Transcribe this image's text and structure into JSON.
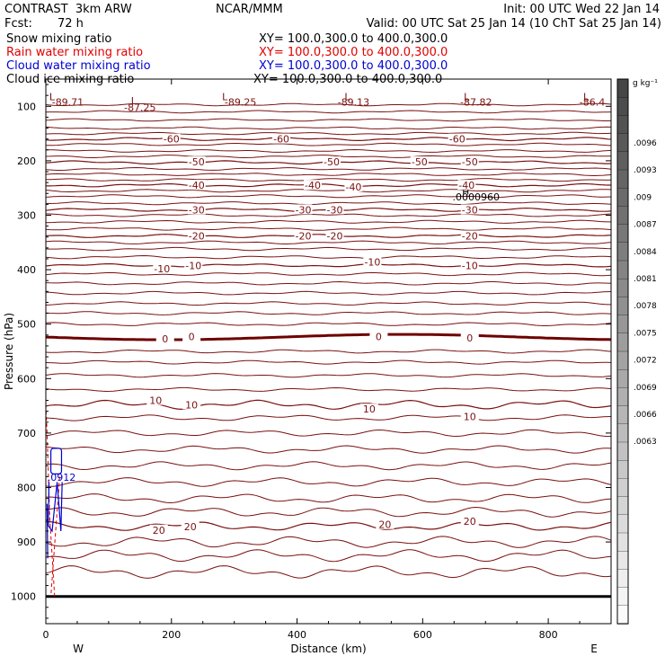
{
  "header": {
    "model": "CONTRAST  3km ARW",
    "center": "NCAR/MMM",
    "init": "Init: 00 UTC Wed 22 Jan 14",
    "fcst_label": "Fcst:",
    "fcst_value": "72 h",
    "valid": "Valid: 00 UTC Sat 25 Jan 14 (10 ChT Sat 25 Jan 14)"
  },
  "fields": [
    {
      "name": "Snow mixing ratio",
      "xy": "XY= 100.0,300.0 to 400.0,300.0",
      "color": "#000000"
    },
    {
      "name": "Rain water mixing ratio",
      "xy": "XY= 100.0,300.0 to 400.0,300.0",
      "color": "#e00000"
    },
    {
      "name": "Cloud water mixing ratio",
      "xy": "XY= 100.0,300.0 to 400.0,300.0",
      "color": "#0000d0"
    },
    {
      "name": "Cloud ice mixing ratio",
      "xy": "XY= 100.0,300.0 to 400.0,300.0",
      "color": "#000000"
    }
  ],
  "chart_data": {
    "type": "contour",
    "xlabel": "Distance (km)",
    "ylabel": "Pressure (hPa)",
    "xlim": [
      0,
      900
    ],
    "ylim": [
      50,
      1050
    ],
    "x_ticks": [
      0,
      200,
      400,
      600,
      800
    ],
    "y_ticks": [
      100,
      200,
      300,
      400,
      500,
      600,
      700,
      800,
      900,
      1000
    ],
    "x_end_labels": {
      "left": "W",
      "right": "E"
    },
    "temperature_contours": [
      {
        "level": -60,
        "base_p": 160
      },
      {
        "level": -50,
        "base_p": 203
      },
      {
        "level": -40,
        "base_p": 245
      },
      {
        "level": -30,
        "base_p": 290
      },
      {
        "level": -20,
        "base_p": 338
      },
      {
        "level": -10,
        "base_p": 392
      },
      {
        "level": 0,
        "base_p": 527,
        "bold": true
      },
      {
        "level": 10,
        "base_p": 648
      },
      {
        "level": 20,
        "base_p": 871
      }
    ],
    "contour_labels": [
      {
        "text": "-60",
        "x": 200,
        "p": 160
      },
      {
        "text": "-60",
        "x": 375,
        "p": 160
      },
      {
        "text": "-60",
        "x": 655,
        "p": 160
      },
      {
        "text": "-50",
        "x": 240,
        "p": 202
      },
      {
        "text": "-50",
        "x": 455,
        "p": 202
      },
      {
        "text": "-50",
        "x": 595,
        "p": 202
      },
      {
        "text": "-50",
        "x": 675,
        "p": 202
      },
      {
        "text": "-40",
        "x": 240,
        "p": 245
      },
      {
        "text": "-40",
        "x": 425,
        "p": 245
      },
      {
        "text": "-40",
        "x": 490,
        "p": 248
      },
      {
        "text": "-40",
        "x": 670,
        "p": 245
      },
      {
        "text": "-30",
        "x": 240,
        "p": 290
      },
      {
        "text": "-30",
        "x": 410,
        "p": 290
      },
      {
        "text": "-30",
        "x": 460,
        "p": 290
      },
      {
        "text": "-30",
        "x": 675,
        "p": 290
      },
      {
        "text": "-20",
        "x": 240,
        "p": 338
      },
      {
        "text": "-20",
        "x": 410,
        "p": 338
      },
      {
        "text": "-20",
        "x": 460,
        "p": 338
      },
      {
        "text": "-20",
        "x": 675,
        "p": 338
      },
      {
        "text": "-10",
        "x": 185,
        "p": 398
      },
      {
        "text": "-10",
        "x": 235,
        "p": 392
      },
      {
        "text": "-10",
        "x": 520,
        "p": 386
      },
      {
        "text": "-10",
        "x": 675,
        "p": 392
      },
      {
        "text": "0",
        "x": 190,
        "p": 527
      },
      {
        "text": "0",
        "x": 232,
        "p": 523
      },
      {
        "text": "0",
        "x": 530,
        "p": 523
      },
      {
        "text": "0",
        "x": 675,
        "p": 525
      },
      {
        "text": "10",
        "x": 175,
        "p": 640
      },
      {
        "text": "10",
        "x": 232,
        "p": 648
      },
      {
        "text": "10",
        "x": 515,
        "p": 656
      },
      {
        "text": "10",
        "x": 675,
        "p": 670
      },
      {
        "text": "20",
        "x": 180,
        "p": 878
      },
      {
        "text": "20",
        "x": 230,
        "p": 872
      },
      {
        "text": "20",
        "x": 540,
        "p": 868
      },
      {
        "text": "20",
        "x": 675,
        "p": 862
      }
    ],
    "low_centers": [
      {
        "text": "L",
        "x": 10,
        "p": 82
      },
      {
        "text": "L",
        "x": 140,
        "p": 90
      },
      {
        "text": "L",
        "x": 285,
        "p": 82
      },
      {
        "text": "L",
        "x": 480,
        "p": 82
      },
      {
        "text": "L",
        "x": 670,
        "p": 82
      },
      {
        "text": "L",
        "x": 860,
        "p": 82
      }
    ],
    "low_values": [
      {
        "text": "-89.71",
        "x": 35,
        "p": 92
      },
      {
        "text": "-87.25",
        "x": 150,
        "p": 102
      },
      {
        "text": "-89.25",
        "x": 310,
        "p": 92
      },
      {
        "text": "-89.13",
        "x": 490,
        "p": 92
      },
      {
        "text": "-87.82",
        "x": 685,
        "p": 92
      },
      {
        "text": "-86.4",
        "x": 870,
        "p": 92
      }
    ],
    "annotations": [
      {
        "text": ".0000960",
        "x": 685,
        "p": 266,
        "color": "#000000"
      },
      {
        "text": ".0912",
        "x": 25,
        "p": 781,
        "color": "#0000d0"
      }
    ],
    "colorbar": {
      "unit": "g kg⁻¹",
      "ticks": [
        ".0096",
        ".0093",
        ".009",
        ".0087",
        ".0084",
        ".0081",
        ".0078",
        ".0075",
        ".0072",
        ".0069",
        ".0066",
        ".0063"
      ]
    }
  }
}
